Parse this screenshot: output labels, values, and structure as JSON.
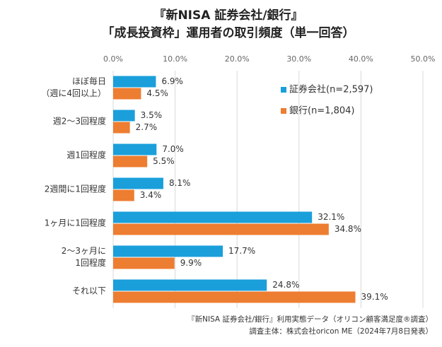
{
  "chart_data": {
    "type": "bar",
    "orientation": "horizontal",
    "title": [
      "『新NISA 証券会社/銀行』",
      "「成長投資枠」運用者の取引頻度（単一回答）"
    ],
    "categories": [
      [
        "ほぼ毎日",
        "（週に4回以上）"
      ],
      [
        "週2～3回程度"
      ],
      [
        "週1回程度"
      ],
      [
        "2週間に1回程度"
      ],
      [
        "1ヶ月に1回程度"
      ],
      [
        "2～3ヶ月に",
        "1回程度"
      ],
      [
        "それ以下"
      ]
    ],
    "series": [
      {
        "name": "証券会社(n=2,597)",
        "color": "#1a9fdb",
        "values": [
          6.9,
          3.5,
          7.0,
          8.1,
          32.1,
          17.7,
          24.8
        ],
        "value_labels": [
          "6.9%",
          "3.5%",
          "7.0%",
          "8.1%",
          "32.1%",
          "17.7%",
          "24.8%"
        ]
      },
      {
        "name": "銀行(n=1,804)",
        "color": "#ed7d31",
        "values": [
          4.5,
          2.7,
          5.5,
          3.4,
          34.8,
          9.9,
          39.1
        ],
        "value_labels": [
          "4.5%",
          "2.7%",
          "5.5%",
          "3.4%",
          "34.8%",
          "9.9%",
          "39.1%"
        ]
      }
    ],
    "xlim": [
      0,
      50
    ],
    "xticks": [
      {
        "value": 0,
        "label": "0.0%"
      },
      {
        "value": 10,
        "label": "10.0%"
      },
      {
        "value": 20,
        "label": "20.0%"
      },
      {
        "value": 30,
        "label": "30.0%"
      },
      {
        "value": 40,
        "label": "40.0%"
      },
      {
        "value": 50,
        "label": "50.0%"
      }
    ],
    "grid": true,
    "source": [
      "『新NISA 証券会社/銀行』利用実態データ（オリコン顧客満足度®調査）",
      "調査主体：株式会社oricon ME（2024年7月8日発表）"
    ]
  }
}
